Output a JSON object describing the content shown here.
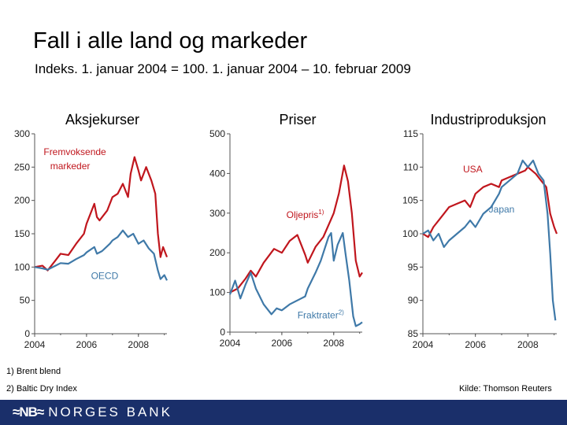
{
  "title": "Fall i alle land og markeder",
  "subtitle": "Indeks. 1. januar 2004 = 100. 1. januar 2004 – 10. februar 2009",
  "footnotes": [
    "1)  Brent blend",
    "2)  Baltic Dry Index"
  ],
  "source": "Kilde: Thomson Reuters",
  "brand": {
    "mark": "≈NB≈",
    "name": "NORGES BANK",
    "bar_color": "#1a2f6a"
  },
  "chart_data": [
    {
      "type": "line",
      "title": "Aksjekurser",
      "xlim": [
        2004,
        2009.1
      ],
      "ylim": [
        0,
        300
      ],
      "xticks": [
        2004,
        2006,
        2008
      ],
      "xtick_labels": [
        "2004",
        "2006",
        "2008"
      ],
      "yticks": [
        0,
        50,
        100,
        150,
        200,
        250,
        300
      ],
      "ytick_labels": [
        "0",
        "50",
        "100",
        "150",
        "200",
        "250",
        "300"
      ],
      "series": [
        {
          "name": "Fremvoksende markeder",
          "label_lines": [
            "Fremvoksende",
            "markeder"
          ],
          "color": "#c0161d",
          "x": [
            2004,
            2004.3,
            2004.5,
            2004.8,
            2005,
            2005.3,
            2005.6,
            2005.9,
            2006,
            2006.3,
            2006.4,
            2006.5,
            2006.8,
            2007,
            2007.2,
            2007.4,
            2007.6,
            2007.7,
            2007.85,
            2008,
            2008.1,
            2008.3,
            2008.5,
            2008.65,
            2008.75,
            2008.85,
            2008.95,
            2009.1
          ],
          "values": [
            100,
            102,
            95,
            110,
            120,
            118,
            135,
            150,
            165,
            195,
            175,
            170,
            185,
            205,
            210,
            225,
            205,
            240,
            265,
            245,
            230,
            250,
            230,
            210,
            150,
            115,
            130,
            115
          ]
        },
        {
          "name": "OECD",
          "label_lines": [
            "OECD"
          ],
          "color": "#3f79a8",
          "x": [
            2004,
            2004.3,
            2004.5,
            2004.8,
            2005,
            2005.3,
            2005.6,
            2005.9,
            2006,
            2006.3,
            2006.4,
            2006.6,
            2006.9,
            2007,
            2007.2,
            2007.4,
            2007.6,
            2007.8,
            2008,
            2008.2,
            2008.4,
            2008.6,
            2008.75,
            2008.85,
            2009,
            2009.1
          ],
          "values": [
            100,
            98,
            96,
            102,
            106,
            105,
            112,
            118,
            122,
            130,
            120,
            124,
            135,
            140,
            145,
            155,
            145,
            150,
            135,
            140,
            128,
            120,
            95,
            82,
            88,
            80
          ]
        }
      ],
      "annotations": [
        {
          "text": "Fremvoksende",
          "x": 2005.55,
          "y": 268
        },
        {
          "text": "markeder",
          "x": 2005.55,
          "y": 247
        },
        {
          "text": "OECD",
          "x": 2006.7,
          "y": 82
        }
      ]
    },
    {
      "type": "line",
      "title": "Priser",
      "xlim": [
        2004,
        2009.1
      ],
      "ylim": [
        0,
        500
      ],
      "xticks": [
        2004,
        2006,
        2008
      ],
      "xtick_labels": [
        "2004",
        "2006",
        "2008"
      ],
      "yticks": [
        0,
        100,
        200,
        300,
        400,
        500
      ],
      "ytick_labels": [
        "0",
        "100",
        "200",
        "300",
        "400",
        "500"
      ],
      "series": [
        {
          "name": "Oljepris",
          "label_text": "Oljepris",
          "label_sup": "1)",
          "color": "#c0161d",
          "x": [
            2004,
            2004.3,
            2004.6,
            2004.8,
            2005,
            2005.3,
            2005.7,
            2006,
            2006.3,
            2006.6,
            2006.9,
            2007,
            2007.3,
            2007.6,
            2007.9,
            2008,
            2008.2,
            2008.4,
            2008.55,
            2008.7,
            2008.85,
            2009,
            2009.1
          ],
          "values": [
            100,
            110,
            135,
            155,
            140,
            175,
            210,
            200,
            230,
            245,
            195,
            175,
            215,
            240,
            285,
            300,
            350,
            420,
            380,
            300,
            180,
            140,
            150
          ]
        },
        {
          "name": "Fraktrater",
          "label_text": "Fraktrater",
          "label_sup": "2)",
          "color": "#3f79a8",
          "x": [
            2004,
            2004.2,
            2004.4,
            2004.6,
            2004.8,
            2005,
            2005.3,
            2005.6,
            2005.8,
            2006,
            2006.3,
            2006.6,
            2006.9,
            2007,
            2007.3,
            2007.5,
            2007.8,
            2007.9,
            2008,
            2008.15,
            2008.35,
            2008.45,
            2008.6,
            2008.75,
            2008.85,
            2009,
            2009.1
          ],
          "values": [
            95,
            130,
            85,
            120,
            150,
            110,
            70,
            45,
            60,
            55,
            70,
            80,
            90,
            110,
            150,
            180,
            240,
            250,
            180,
            220,
            250,
            200,
            130,
            40,
            15,
            20,
            25
          ]
        }
      ],
      "annotations": [
        {
          "text": "Oljepris",
          "x": 2006.9,
          "y": 288
        },
        {
          "text": "Fraktrater",
          "x": 2007.5,
          "y": 35
        }
      ]
    },
    {
      "type": "line",
      "title": "Industriproduksjon",
      "xlim": [
        2004,
        2009.1
      ],
      "ylim": [
        85,
        115
      ],
      "xticks": [
        2004,
        2006,
        2008
      ],
      "xtick_labels": [
        "2004",
        "2006",
        "2008"
      ],
      "yticks": [
        85,
        90,
        95,
        100,
        105,
        110,
        115
      ],
      "ytick_labels": [
        "85",
        "90",
        "95",
        "100",
        "105",
        "110",
        "115"
      ],
      "series": [
        {
          "name": "USA",
          "label_text": "USA",
          "color": "#c0161d",
          "x": [
            2004,
            2004.2,
            2004.4,
            2004.6,
            2004.8,
            2005,
            2005.3,
            2005.6,
            2005.8,
            2006,
            2006.3,
            2006.6,
            2006.9,
            2007,
            2007.3,
            2007.6,
            2007.9,
            2008,
            2008.3,
            2008.5,
            2008.7,
            2008.85,
            2009,
            2009.1
          ],
          "values": [
            100,
            99.5,
            101,
            102,
            103,
            104,
            104.5,
            105,
            104,
            106,
            107,
            107.5,
            107,
            108,
            108.5,
            109,
            109.5,
            110,
            109,
            108,
            107,
            103,
            101,
            100
          ]
        },
        {
          "name": "Japan",
          "label_text": "Japan",
          "color": "#3f79a8",
          "x": [
            2004,
            2004.2,
            2004.4,
            2004.6,
            2004.8,
            2005,
            2005.3,
            2005.6,
            2005.8,
            2006,
            2006.3,
            2006.6,
            2006.9,
            2007,
            2007.3,
            2007.6,
            2007.8,
            2008,
            2008.2,
            2008.4,
            2008.6,
            2008.75,
            2008.85,
            2008.95,
            2009.05
          ],
          "values": [
            100,
            100.5,
            99,
            100,
            98,
            99,
            100,
            101,
            102,
            101,
            103,
            104,
            106,
            107,
            108,
            109,
            111,
            110,
            111,
            109,
            108,
            103,
            97,
            90,
            87
          ]
        }
      ],
      "annotations": [
        {
          "text": "USA",
          "x": 2005.9,
          "y": 109.2
        },
        {
          "text": "Japan",
          "x": 2007.0,
          "y": 103.2
        }
      ]
    }
  ]
}
